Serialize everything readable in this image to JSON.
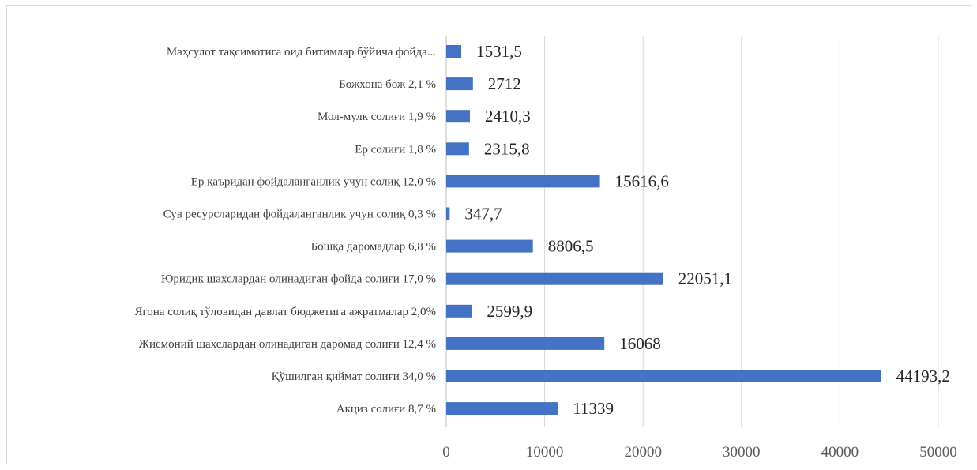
{
  "chart_data": {
    "type": "bar",
    "orientation": "horizontal",
    "title": "",
    "xlabel": "",
    "ylabel": "",
    "xlim": [
      0,
      50000
    ],
    "x_ticks": [
      "0",
      "10000",
      "20000",
      "30000",
      "40000",
      "50000"
    ],
    "grid": "vertical",
    "legend": "none",
    "bar_color": "#4472c4",
    "categories": [
      "Мaҳсулот тақсимотига оид битимлар бўйича фойда...",
      "Божхона бож 2,1 %",
      "Мол-мулк солиғи 1,9 %",
      "Ер солиғи 1,8 %",
      "Ер қаъридан фойдаланганлик учун солиқ 12,0 %",
      "Сув ресурсларидан фойдаланганлик учун солиқ 0,3 %",
      "Бошқа даромадлар 6,8 %",
      "Юридик шахслардан олинадиган фойда солиғи 17,0 %",
      "Ягона солиқ тўловидан давлат бюджетига ажратмалар 2,0%",
      "Жисмоний шахслардан олинадиган даромад солиғи 12,4 %",
      "Қўшилган қиймат солиғи 34,0 %",
      "Акциз солиғи 8,7 %"
    ],
    "values": [
      1531.5,
      2712,
      2410.3,
      2315.8,
      15616.6,
      347.7,
      8806.5,
      22051.1,
      2599.9,
      16068,
      44193.2,
      11339
    ],
    "value_labels": [
      "1531,5",
      "2712",
      "2410,3",
      "2315,8",
      "15616,6",
      "347,7",
      "8806,5",
      "22051,1",
      "2599,9",
      "16068",
      "44193,2",
      "11339"
    ]
  }
}
